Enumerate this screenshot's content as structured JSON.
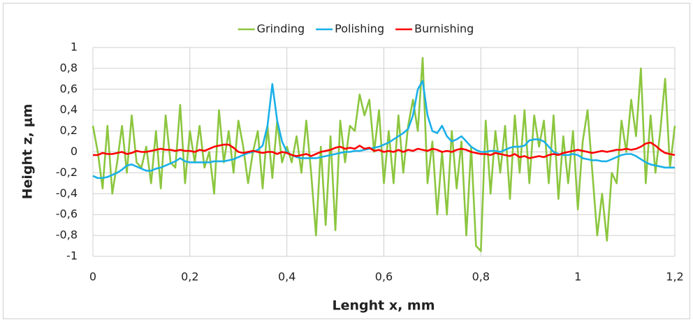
{
  "chart_data": {
    "type": "line",
    "xlabel": "Lenght x, mm",
    "ylabel": "Height z, μm",
    "x": [
      0,
      0.01,
      0.02,
      0.03,
      0.04,
      0.05,
      0.06,
      0.07,
      0.08,
      0.09,
      0.1,
      0.11,
      0.12,
      0.13,
      0.14,
      0.15,
      0.16,
      0.17,
      0.18,
      0.19,
      0.2,
      0.21,
      0.22,
      0.23,
      0.24,
      0.25,
      0.26,
      0.27,
      0.28,
      0.29,
      0.3,
      0.31,
      0.32,
      0.33,
      0.34,
      0.35,
      0.36,
      0.37,
      0.38,
      0.39,
      0.4,
      0.41,
      0.42,
      0.43,
      0.44,
      0.45,
      0.46,
      0.47,
      0.48,
      0.49,
      0.5,
      0.51,
      0.52,
      0.53,
      0.54,
      0.55,
      0.56,
      0.57,
      0.58,
      0.59,
      0.6,
      0.61,
      0.62,
      0.63,
      0.64,
      0.65,
      0.66,
      0.67,
      0.68,
      0.69,
      0.7,
      0.71,
      0.72,
      0.73,
      0.74,
      0.75,
      0.76,
      0.77,
      0.78,
      0.79,
      0.8,
      0.81,
      0.82,
      0.83,
      0.84,
      0.85,
      0.86,
      0.87,
      0.88,
      0.89,
      0.9,
      0.91,
      0.92,
      0.93,
      0.94,
      0.95,
      0.96,
      0.97,
      0.98,
      0.99,
      1,
      1.01,
      1.02,
      1.03,
      1.04,
      1.05,
      1.06,
      1.07,
      1.08,
      1.09,
      1.1,
      1.11,
      1.12,
      1.13,
      1.14,
      1.15,
      1.16,
      1.17,
      1.18,
      1.19,
      1.2
    ],
    "series": [
      {
        "name": "Grinding",
        "color": "#8cc63f",
        "values": [
          0.25,
          0.0,
          -0.35,
          0.25,
          -0.4,
          -0.1,
          0.25,
          -0.2,
          0.35,
          -0.1,
          -0.15,
          0.05,
          -0.3,
          0.2,
          -0.35,
          0.35,
          -0.1,
          -0.15,
          0.45,
          -0.3,
          0.2,
          -0.1,
          0.25,
          -0.15,
          0.0,
          -0.4,
          0.4,
          -0.1,
          0.2,
          -0.2,
          0.3,
          0.05,
          -0.3,
          0.0,
          0.2,
          -0.35,
          0.25,
          -0.25,
          0.3,
          -0.1,
          0.05,
          -0.1,
          0.15,
          -0.2,
          0.3,
          -0.2,
          -0.8,
          0.05,
          -0.7,
          0.15,
          -0.75,
          0.3,
          -0.1,
          0.25,
          0.2,
          0.55,
          0.35,
          0.5,
          0.0,
          0.4,
          -0.3,
          0.2,
          -0.3,
          0.35,
          -0.2,
          0.25,
          0.5,
          0.2,
          0.9,
          -0.3,
          0.1,
          -0.6,
          0.0,
          -0.6,
          0.2,
          -0.35,
          0.1,
          -0.8,
          0.05,
          -0.9,
          -0.95,
          0.3,
          -0.4,
          0.2,
          -0.2,
          0.25,
          -0.45,
          0.35,
          -0.2,
          0.4,
          -0.3,
          0.35,
          0.05,
          0.3,
          -0.3,
          0.35,
          -0.45,
          0.15,
          -0.3,
          0.2,
          -0.55,
          0.1,
          0.4,
          -0.2,
          -0.8,
          -0.4,
          -0.85,
          -0.2,
          -0.3,
          0.3,
          0.0,
          0.5,
          0.15,
          0.8,
          -0.3,
          0.35,
          -0.2,
          0.2,
          0.7,
          -0.15,
          0.25
        ]
      },
      {
        "name": "Polishing",
        "color": "#1ab0e8",
        "values": [
          -0.23,
          -0.25,
          -0.25,
          -0.24,
          -0.22,
          -0.2,
          -0.17,
          -0.13,
          -0.12,
          -0.14,
          -0.16,
          -0.18,
          -0.18,
          -0.16,
          -0.15,
          -0.13,
          -0.11,
          -0.09,
          -0.06,
          -0.09,
          -0.1,
          -0.1,
          -0.1,
          -0.1,
          -0.1,
          -0.09,
          -0.09,
          -0.09,
          -0.08,
          -0.07,
          -0.05,
          -0.03,
          -0.01,
          0.0,
          0.02,
          0.06,
          0.25,
          0.65,
          0.3,
          0.1,
          0.0,
          -0.03,
          -0.05,
          -0.06,
          -0.06,
          -0.06,
          -0.06,
          -0.05,
          -0.04,
          -0.03,
          -0.02,
          -0.01,
          0.0,
          0.0,
          0.01,
          0.01,
          0.02,
          0.03,
          0.04,
          0.05,
          0.07,
          0.09,
          0.12,
          0.15,
          0.18,
          0.22,
          0.35,
          0.6,
          0.68,
          0.35,
          0.2,
          0.18,
          0.25,
          0.15,
          0.1,
          0.12,
          0.15,
          0.1,
          0.05,
          0.02,
          0.0,
          0.0,
          0.01,
          0.01,
          0.0,
          0.02,
          0.04,
          0.05,
          0.05,
          0.06,
          0.11,
          0.12,
          0.12,
          0.1,
          0.05,
          0.0,
          -0.02,
          -0.03,
          -0.03,
          -0.02,
          -0.03,
          -0.06,
          -0.07,
          -0.08,
          -0.08,
          -0.09,
          -0.09,
          -0.07,
          -0.05,
          -0.03,
          -0.02,
          -0.02,
          -0.04,
          -0.07,
          -0.1,
          -0.12,
          -0.13,
          -0.14,
          -0.15,
          -0.15,
          -0.15
        ]
      },
      {
        "name": "Burnishing",
        "color": "#ff0000",
        "values": [
          -0.03,
          -0.03,
          -0.01,
          -0.02,
          -0.02,
          -0.01,
          0.0,
          -0.02,
          -0.01,
          0.01,
          0.0,
          0.0,
          0.01,
          0.02,
          0.03,
          0.02,
          0.02,
          0.01,
          0.02,
          0.01,
          0.01,
          0.0,
          0.02,
          0.01,
          0.03,
          0.05,
          0.06,
          0.07,
          0.07,
          0.04,
          0.0,
          -0.01,
          0.0,
          0.01,
          0.0,
          -0.01,
          0.0,
          0.0,
          -0.02,
          0.0,
          -0.01,
          -0.03,
          -0.04,
          -0.03,
          -0.02,
          -0.04,
          -0.02,
          0.0,
          0.01,
          0.02,
          0.04,
          0.05,
          0.03,
          0.04,
          0.03,
          0.06,
          0.03,
          0.04,
          0.01,
          0.02,
          0.0,
          0.01,
          0.0,
          0.02,
          0.0,
          0.02,
          0.01,
          0.03,
          0.02,
          0.01,
          0.03,
          0.02,
          0.0,
          0.01,
          0.0,
          0.02,
          0.03,
          0.02,
          0.0,
          -0.01,
          -0.02,
          -0.02,
          -0.03,
          -0.01,
          -0.02,
          -0.03,
          -0.04,
          -0.02,
          -0.05,
          -0.04,
          -0.06,
          -0.05,
          -0.04,
          -0.05,
          -0.03,
          -0.02,
          -0.03,
          -0.01,
          0.0,
          0.01,
          0.02,
          0.01,
          0.0,
          -0.01,
          0.0,
          0.01,
          0.0,
          0.01,
          0.02,
          0.02,
          0.03,
          0.02,
          0.03,
          0.05,
          0.08,
          0.09,
          0.06,
          0.02,
          -0.01,
          -0.02,
          -0.03
        ]
      }
    ],
    "xlim": [
      0,
      1.2
    ],
    "xticks": [
      0,
      {
        "value": 0.2,
        "label": "0,2"
      },
      {
        "value": 0.4,
        "label": "0,4"
      },
      {
        "value": 0.6,
        "label": "0,6"
      },
      {
        "value": 0.8,
        "label": "0,8"
      },
      1,
      {
        "value": 1.2,
        "label": "1,2"
      }
    ],
    "ylim": [
      -1,
      1
    ],
    "yticks": [
      -1,
      {
        "value": -0.8,
        "label": "-0,8"
      },
      {
        "value": -0.6,
        "label": "-0,6"
      },
      {
        "value": -0.4,
        "label": "-0,4"
      },
      {
        "value": -0.2,
        "label": "-0,2"
      },
      0,
      {
        "value": 0.2,
        "label": "0,2"
      },
      {
        "value": 0.4,
        "label": "0,4"
      },
      {
        "value": 0.6,
        "label": "0,6"
      },
      {
        "value": 0.8,
        "label": "0,8"
      },
      1
    ],
    "grid": true,
    "legend": "top"
  }
}
